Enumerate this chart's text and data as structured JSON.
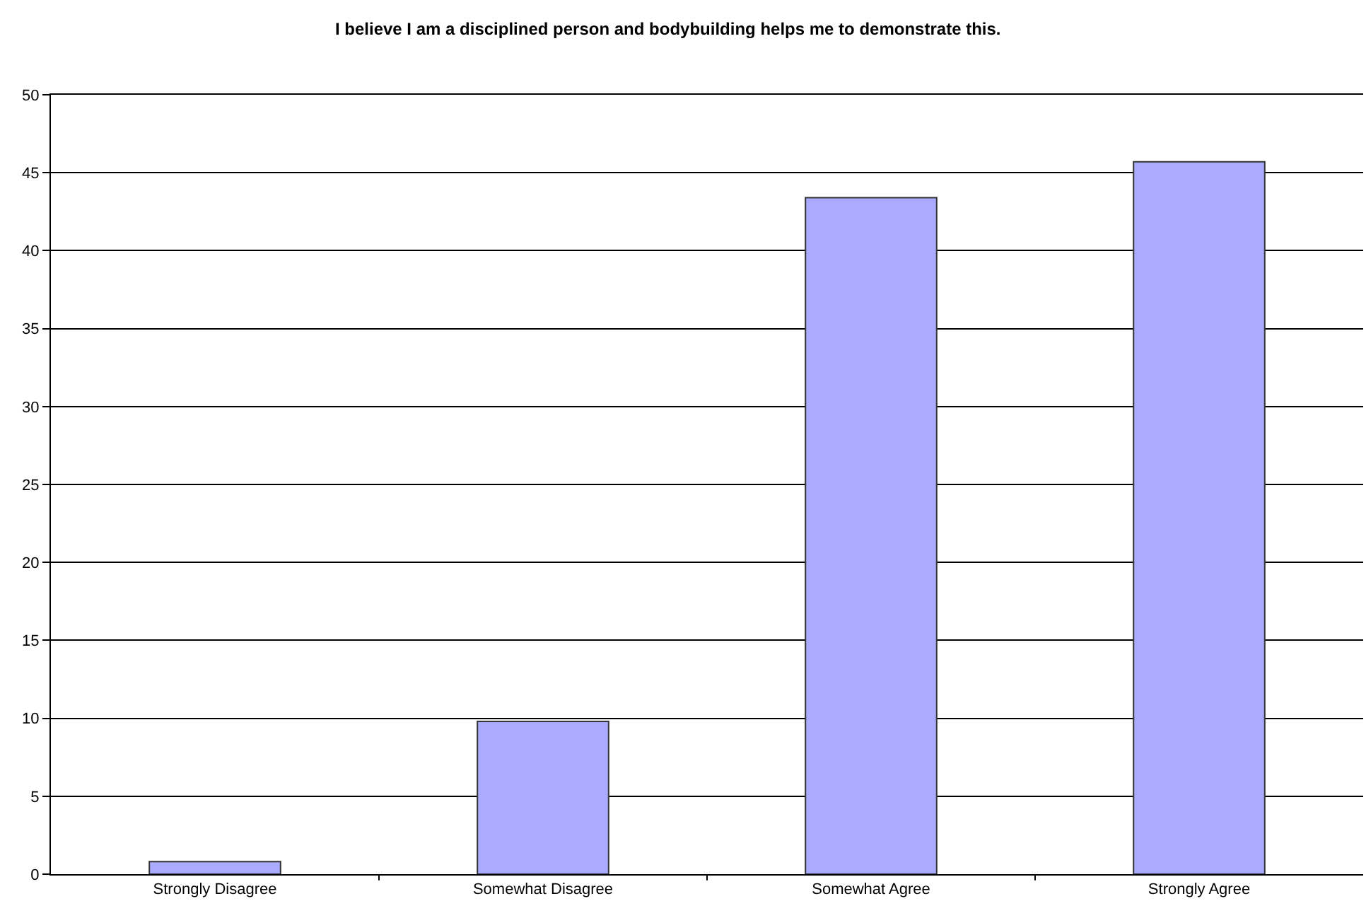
{
  "chart_data": {
    "type": "bar",
    "title": "I believe I am a disciplined person and bodybuilding helps me to demonstrate this.",
    "categories": [
      "Strongly Disagree",
      "Somewhat Disagree",
      "Somewhat Agree",
      "Strongly Agree"
    ],
    "values": [
      0.8,
      9.8,
      43.4,
      45.7
    ],
    "color": "#aaaaff",
    "ylim": [
      0,
      50
    ],
    "yticks": [
      0,
      5,
      10,
      15,
      20,
      25,
      30,
      35,
      40,
      45,
      50
    ],
    "grid": "y"
  }
}
